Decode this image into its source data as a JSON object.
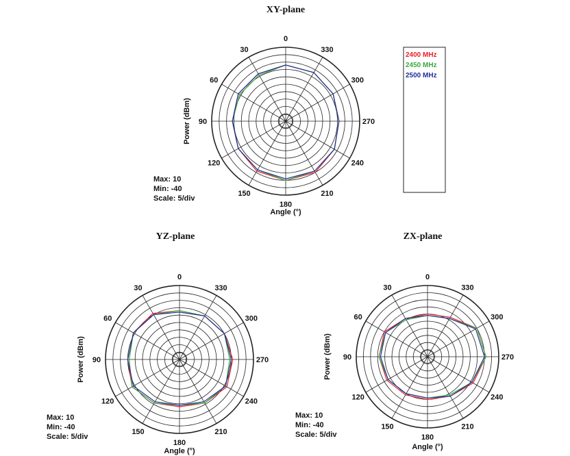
{
  "colors": {
    "2400 MHz": "#e8202a",
    "2450 MHz": "#3aa83a",
    "2500 MHz": "#1f2f9a"
  },
  "legend": [
    "2400 MHz",
    "2450 MHz",
    "2500 MHz"
  ],
  "chart_data": [
    {
      "type": "polar-line",
      "title": "XY-plane",
      "xlabel": "Angle (°)",
      "ylabel": "Power (dBm)",
      "angle_labels": [
        "0",
        "30",
        "60",
        "90",
        "120",
        "150",
        "180",
        "210",
        "240",
        "270",
        "300",
        "330"
      ],
      "r_range": [
        -40,
        10
      ],
      "r_step": 5,
      "info": [
        "Max: 10",
        "Min: -40",
        "Scale: 5/div"
      ],
      "angles": [
        0,
        30,
        60,
        90,
        120,
        150,
        180,
        210,
        240,
        270,
        300,
        330
      ],
      "series": [
        {
          "name": "2400 MHz",
          "values": [
            -2,
            -3,
            -3,
            -4,
            -3,
            -1,
            0,
            0,
            -2,
            -4,
            -3,
            -2
          ]
        },
        {
          "name": "2450 MHz",
          "values": [
            -2,
            -4,
            -4,
            -4,
            -3,
            -2,
            0,
            -1,
            -2,
            -4,
            -3,
            -2
          ]
        },
        {
          "name": "2500 MHz",
          "values": [
            -2,
            -3,
            -3,
            -4,
            -3,
            -2,
            -1,
            -1,
            -2,
            -4,
            -3,
            -2
          ]
        }
      ]
    },
    {
      "type": "polar-line",
      "title": "YZ-plane",
      "xlabel": "Angle (°)",
      "ylabel": "Power (dBm)",
      "angle_labels": [
        "0",
        "30",
        "60",
        "90",
        "120",
        "150",
        "180",
        "210",
        "240",
        "270",
        "300",
        "330"
      ],
      "r_range": [
        -40,
        10
      ],
      "r_step": 5,
      "info": [
        "Max: 10",
        "Min: -40",
        "Scale: 5/div"
      ],
      "angles": [
        0,
        30,
        60,
        90,
        120,
        150,
        180,
        210,
        240,
        270,
        300,
        330
      ],
      "series": [
        {
          "name": "2400 MHz",
          "values": [
            -7,
            -4,
            -4,
            -5,
            -3,
            -6,
            -8,
            -6,
            -3,
            -4,
            -5,
            -6
          ]
        },
        {
          "name": "2450 MHz",
          "values": [
            -7,
            -5,
            -4,
            -6,
            -3,
            -6,
            -9,
            -6,
            -4,
            -6,
            -5,
            -6
          ]
        },
        {
          "name": "2500 MHz",
          "values": [
            -8,
            -5,
            -4,
            -5,
            -4,
            -7,
            -9,
            -7,
            -4,
            -5,
            -5,
            -6
          ]
        }
      ]
    },
    {
      "type": "polar-line",
      "title": "ZX-plane",
      "xlabel": "Angle (°)",
      "ylabel": "Power (dBm)",
      "angle_labels": [
        "0",
        "30",
        "60",
        "90",
        "120",
        "150",
        "180",
        "210",
        "240",
        "270",
        "300",
        "330"
      ],
      "r_range": [
        -40,
        10
      ],
      "r_step": 5,
      "info": [
        "Max: 10",
        "Min: -40",
        "Scale: 5/div"
      ],
      "angles": [
        0,
        30,
        60,
        90,
        120,
        150,
        180,
        210,
        240,
        270,
        300,
        330
      ],
      "series": [
        {
          "name": "2400 MHz",
          "values": [
            -10,
            -9,
            -5,
            -6,
            -7,
            -9,
            -10,
            -8,
            -3,
            1,
            0,
            -8
          ]
        },
        {
          "name": "2450 MHz",
          "values": [
            -11,
            -10,
            -6,
            -6,
            -8,
            -10,
            -11,
            -9,
            -4,
            1,
            0,
            -9
          ]
        },
        {
          "name": "2500 MHz",
          "values": [
            -11,
            -9,
            -6,
            -7,
            -8,
            -10,
            -11,
            -8,
            -4,
            0,
            -1,
            -9
          ]
        }
      ]
    }
  ]
}
